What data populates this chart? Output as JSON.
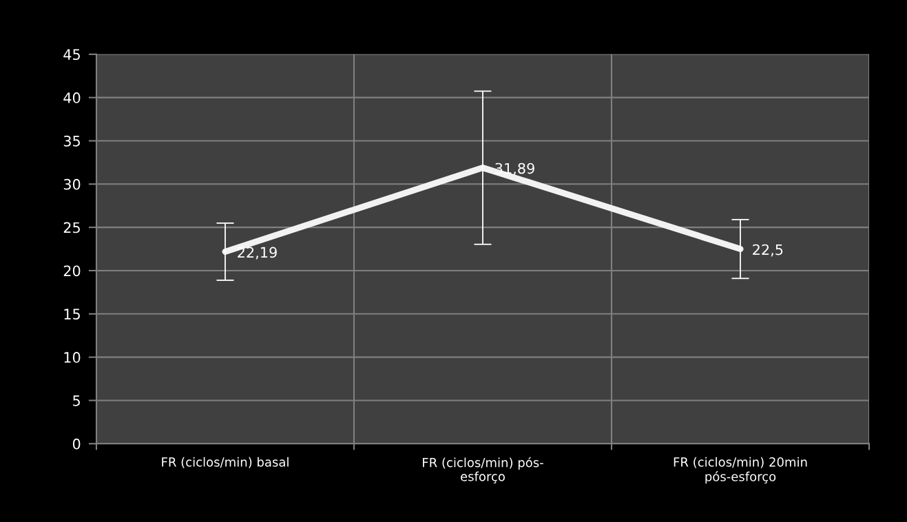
{
  "chart_data": {
    "type": "line",
    "categories": [
      "FR (ciclos/min) basal",
      "FR (ciclos/min) pós-\nesforço",
      "FR (ciclos/min) 20min\npós-esforço"
    ],
    "series": [
      {
        "color": "#f2f2f2",
        "values": [
          22.19,
          31.89,
          22.5
        ],
        "errors": [
          3.3,
          8.85,
          3.4
        ]
      }
    ],
    "value_labels": [
      "22,19",
      "31,89",
      "22,5"
    ],
    "ylim": [
      0,
      45
    ],
    "yticks": [
      0,
      5,
      10,
      15,
      20,
      25,
      30,
      35,
      40,
      45
    ],
    "grid": true,
    "marker": "none",
    "line_style": "solid"
  }
}
